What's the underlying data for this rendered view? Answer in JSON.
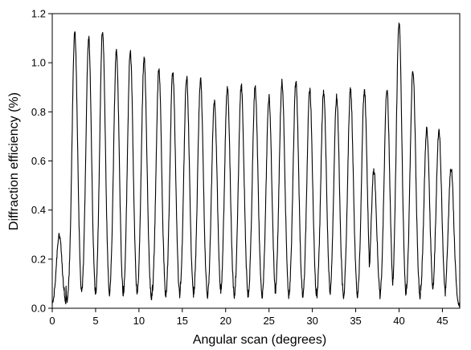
{
  "chart_data": {
    "type": "line",
    "title": "",
    "xlabel": "Angular scan (degrees)",
    "ylabel": "Diffraction efficiency  (%)",
    "xlim": [
      0,
      47
    ],
    "ylim": [
      0,
      1.2
    ],
    "xticks": [
      "0",
      "5",
      "10",
      "15",
      "20",
      "25",
      "30",
      "35",
      "40",
      "45"
    ],
    "yticks": [
      "0.0",
      "0.2",
      "0.4",
      "0.6",
      "0.8",
      "1.0",
      "1.2"
    ],
    "grid": false,
    "line_color": "#000000",
    "series": [
      {
        "name": "",
        "peaks": [
          {
            "x": 0.8,
            "y": 0.3
          },
          {
            "x": 2.6,
            "y": 1.12
          },
          {
            "x": 4.2,
            "y": 1.1
          },
          {
            "x": 5.8,
            "y": 1.13
          },
          {
            "x": 7.4,
            "y": 1.05
          },
          {
            "x": 9.0,
            "y": 1.05
          },
          {
            "x": 10.6,
            "y": 1.02
          },
          {
            "x": 12.3,
            "y": 0.97
          },
          {
            "x": 13.9,
            "y": 0.96
          },
          {
            "x": 15.5,
            "y": 0.94
          },
          {
            "x": 17.1,
            "y": 0.93
          },
          {
            "x": 18.7,
            "y": 0.84
          },
          {
            "x": 20.2,
            "y": 0.9
          },
          {
            "x": 21.8,
            "y": 0.91
          },
          {
            "x": 23.4,
            "y": 0.9
          },
          {
            "x": 25.0,
            "y": 0.86
          },
          {
            "x": 26.5,
            "y": 0.92
          },
          {
            "x": 28.1,
            "y": 0.92
          },
          {
            "x": 29.7,
            "y": 0.89
          },
          {
            "x": 31.3,
            "y": 0.88
          },
          {
            "x": 32.8,
            "y": 0.86
          },
          {
            "x": 34.4,
            "y": 0.89
          },
          {
            "x": 36.0,
            "y": 0.89
          },
          {
            "x": 37.1,
            "y": 0.56
          },
          {
            "x": 38.6,
            "y": 0.89
          },
          {
            "x": 40.0,
            "y": 1.16
          },
          {
            "x": 41.6,
            "y": 0.97
          },
          {
            "x": 43.2,
            "y": 0.73
          },
          {
            "x": 44.6,
            "y": 0.72
          },
          {
            "x": 46.0,
            "y": 0.57
          }
        ],
        "baseline_noise_max": 0.12
      }
    ]
  }
}
